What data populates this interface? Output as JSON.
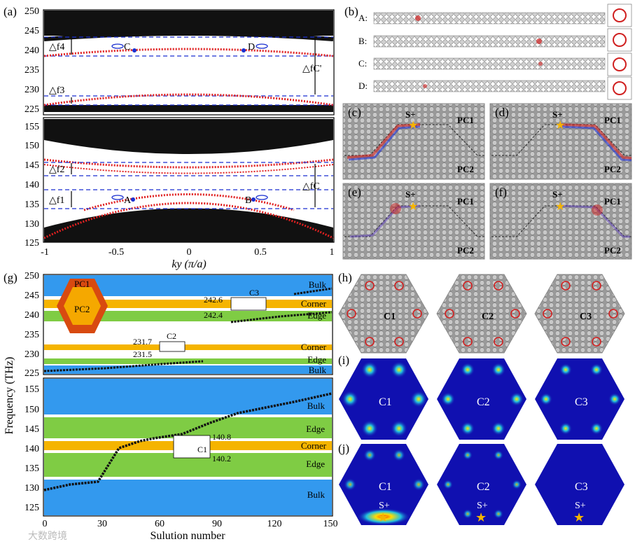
{
  "panels": {
    "a": "(a)",
    "b": "(b)",
    "c": "(c)",
    "d": "(d)",
    "e": "(e)",
    "f": "(f)",
    "g": "(g)",
    "h": "(h)",
    "i": "(i)",
    "j": "(j)"
  },
  "panel_a": {
    "y_ticks_top": [
      "250",
      "245",
      "240",
      "235",
      "230",
      "225"
    ],
    "y_ticks_bottom": [
      "155",
      "150",
      "145",
      "140",
      "135",
      "130",
      "125"
    ],
    "x_ticks": [
      "-1",
      "-0.5",
      "0",
      "0.5",
      "1"
    ],
    "xlabel": "ky (π/a)",
    "annotations": {
      "df4": "△f4",
      "df3": "△f3",
      "df2": "△f2",
      "df1": "△f1",
      "dfC_top": "△fC'",
      "dfC_bottom": "△fC",
      "A": "A",
      "B": "B",
      "C": "C",
      "D": "D"
    }
  },
  "panel_b": {
    "rows": [
      "A:",
      "B:",
      "C:",
      "D:"
    ]
  },
  "panel_cf": {
    "source": "S+",
    "pc1": "PC1",
    "pc2": "PC2"
  },
  "panel_g": {
    "ylabel": "Frequency (THz)",
    "xlabel": "Sulution number",
    "y_ticks_top": [
      "250",
      "245",
      "240",
      "235",
      "230",
      "225"
    ],
    "y_ticks_bottom": [
      "155",
      "150",
      "145",
      "140",
      "135",
      "130",
      "125"
    ],
    "x_ticks": [
      "0",
      "30",
      "60",
      "90",
      "120",
      "150"
    ],
    "regions": [
      "Bulk",
      "Corner",
      "Edge",
      "Corner",
      "Edge",
      "Bulk",
      "Bulk",
      "Edge",
      "Corner",
      "Edge",
      "Bulk"
    ],
    "insets": {
      "c3": "C3",
      "c3_hi": "242.6",
      "c3_lo": "242.4",
      "c2": "C2",
      "c2_hi": "231.7",
      "c2_lo": "231.5",
      "c1": "C1",
      "c1_hi": "140.8",
      "c1_lo": "140.2"
    },
    "legend": {
      "pc1": "PC1",
      "pc2": "PC2"
    }
  },
  "panel_hij": {
    "cavities": [
      "C1",
      "C2",
      "C3"
    ],
    "source": "S+"
  },
  "watermark": "大数跨境",
  "colors": {
    "bulk": "#3399ee",
    "edge": "#7fcc44",
    "corner": "#f5b400",
    "band_red": "#e02020",
    "dash_blue": "#1a2fd0",
    "hex_orange": "#d84a10",
    "hex_yellow": "#f5a800",
    "field_blue": "#1010b0"
  }
}
